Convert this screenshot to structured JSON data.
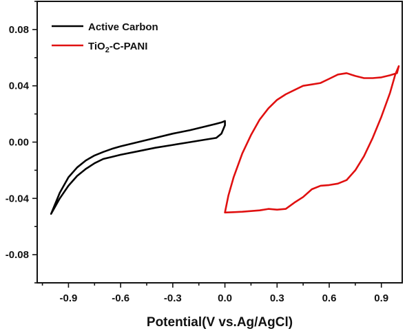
{
  "chart_data": {
    "type": "line",
    "title": "",
    "xlabel": "Potential(V vs.Ag/AgCl)",
    "ylabel": "",
    "xlim": [
      -1.08,
      1.02
    ],
    "ylim": [
      -0.1,
      0.1
    ],
    "x_ticks": [
      -0.9,
      -0.6,
      -0.3,
      0.0,
      0.3,
      0.6,
      0.9
    ],
    "x_tick_labels": [
      "-0.9",
      "-0.6",
      "-0.3",
      "0.0",
      "0.3",
      "0.6",
      "0.9"
    ],
    "y_ticks": [
      -0.08,
      -0.04,
      0.0,
      0.04,
      0.08
    ],
    "y_tick_labels": [
      "-0.08",
      "-0.04",
      "0.00",
      "0.04",
      "0.08"
    ],
    "grid": false,
    "legend": {
      "position": "top-left"
    },
    "series": [
      {
        "name": "Active Carbon",
        "name_parts": {
          "prefix": "Active Carbon",
          "sub": "",
          "suffix": ""
        },
        "color": "#000000",
        "x": [
          -1.0,
          -0.95,
          -0.9,
          -0.85,
          -0.8,
          -0.75,
          -0.7,
          -0.65,
          -0.6,
          -0.5,
          -0.4,
          -0.3,
          -0.2,
          -0.1,
          -0.05,
          -0.02,
          0.0,
          0.0,
          -0.02,
          -0.05,
          -0.1,
          -0.2,
          -0.3,
          -0.4,
          -0.5,
          -0.6,
          -0.65,
          -0.7,
          -0.75,
          -0.8,
          -0.85,
          -0.9,
          -0.95,
          -1.0
        ],
        "y": [
          -0.051,
          -0.04,
          -0.031,
          -0.024,
          -0.019,
          -0.015,
          -0.012,
          -0.0105,
          -0.009,
          -0.0065,
          -0.004,
          -0.002,
          0.0,
          0.002,
          0.003,
          0.006,
          0.012,
          0.015,
          0.014,
          0.013,
          0.0115,
          0.0085,
          0.006,
          0.003,
          0.0,
          -0.003,
          -0.0048,
          -0.007,
          -0.0095,
          -0.013,
          -0.018,
          -0.025,
          -0.036,
          -0.051
        ]
      },
      {
        "name": "TiO2-C-PANI",
        "name_parts": {
          "prefix": "TiO",
          "sub": "2",
          "suffix": "-C-PANI"
        },
        "color": "#e01010",
        "x": [
          0.0,
          0.05,
          0.1,
          0.15,
          0.2,
          0.25,
          0.3,
          0.35,
          0.4,
          0.45,
          0.5,
          0.55,
          0.6,
          0.65,
          0.7,
          0.75,
          0.8,
          0.85,
          0.9,
          0.95,
          0.98,
          1.0,
          0.99,
          0.95,
          0.9,
          0.85,
          0.8,
          0.75,
          0.7,
          0.65,
          0.6,
          0.55,
          0.5,
          0.45,
          0.4,
          0.35,
          0.3,
          0.25,
          0.2,
          0.15,
          0.1,
          0.05,
          0.02,
          0.0
        ],
        "y": [
          -0.05,
          -0.0498,
          -0.0495,
          -0.049,
          -0.0485,
          -0.0475,
          -0.048,
          -0.0475,
          -0.043,
          -0.039,
          -0.0335,
          -0.031,
          -0.0305,
          -0.0295,
          -0.027,
          -0.02,
          -0.01,
          0.003,
          0.018,
          0.035,
          0.048,
          0.054,
          0.049,
          0.0475,
          0.046,
          0.0455,
          0.0455,
          0.047,
          0.049,
          0.048,
          0.045,
          0.042,
          0.041,
          0.04,
          0.037,
          0.034,
          0.03,
          0.024,
          0.016,
          0.005,
          -0.008,
          -0.025,
          -0.038,
          -0.05
        ]
      }
    ]
  }
}
